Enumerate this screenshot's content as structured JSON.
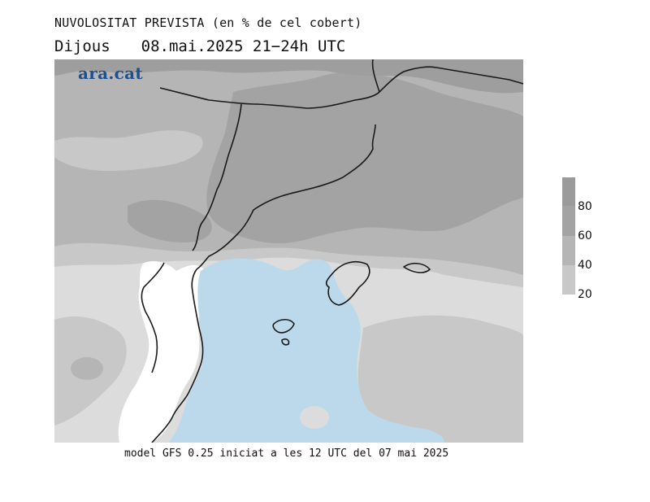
{
  "header": {
    "title": "NUVOLOSITAT PREVISTA (en % de cel cobert)",
    "day": "Dijous",
    "datetime": "08.mai.2025 21−24h UTC"
  },
  "logo": {
    "text": "ara.cat",
    "color": "#1f4f8c"
  },
  "footer": {
    "text": "model GFS 0.25 iniciat a les 12 UTC del 07 mai 2025"
  },
  "legend": {
    "levels": [
      {
        "label": "80",
        "value": 80,
        "color": "#a3a3a3"
      },
      {
        "label": "60",
        "value": 60,
        "color": "#b5b5b5"
      },
      {
        "label": "40",
        "value": 40,
        "color": "#c8c8c8"
      },
      {
        "label": "20",
        "value": 20,
        "color": "#dcdcdc"
      }
    ],
    "top_color": "#9b9b9b"
  },
  "map_colors": {
    "sea_clear": "#bcd9ec",
    "land_clear": "#ffffff",
    "border": "#1a1a1a"
  }
}
